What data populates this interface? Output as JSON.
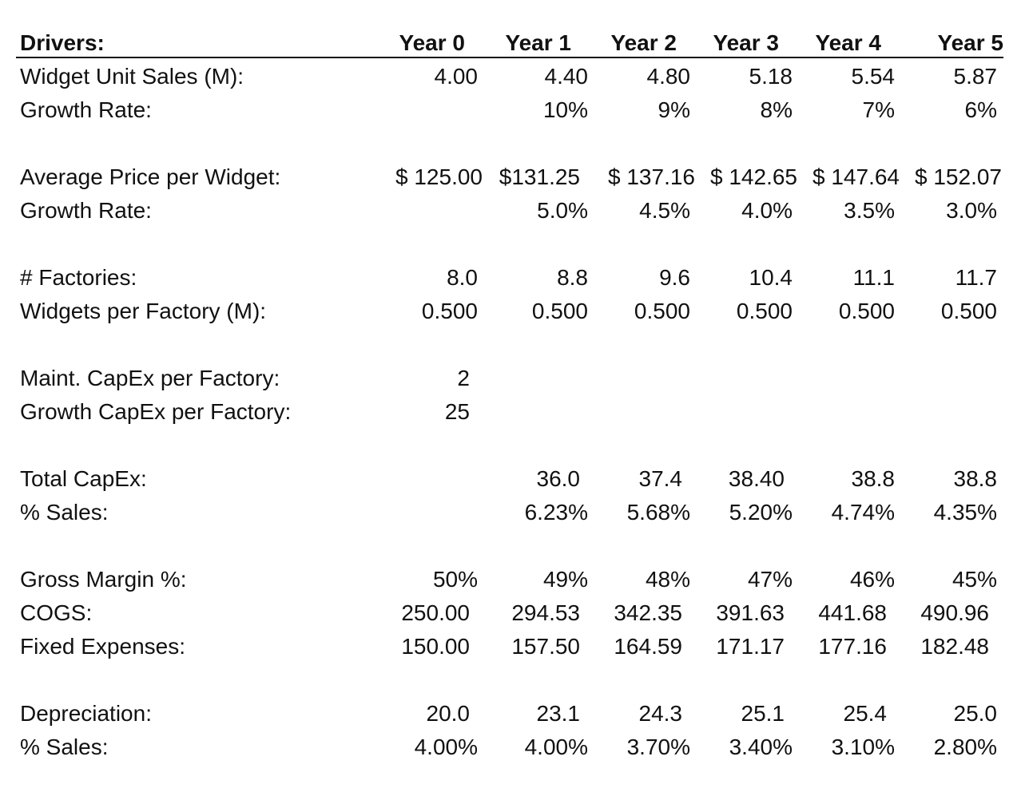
{
  "header": {
    "title": "Drivers:",
    "years": [
      "Year 0",
      "Year 1",
      "Year 2",
      "Year 3",
      "Year 4",
      "Year 5"
    ]
  },
  "rows": {
    "widget_unit_sales": {
      "label": "Widget Unit Sales (M):",
      "values": [
        "4.00",
        "4.40",
        "4.80",
        "5.18",
        "5.54",
        "5.87"
      ]
    },
    "unit_growth_rate": {
      "label": "Growth Rate:",
      "values": [
        "",
        "10%",
        "9%",
        "8%",
        "7%",
        "6%"
      ]
    },
    "average_price": {
      "label": "Average Price per Widget:",
      "values": [
        "$ 125.00",
        "$131.25",
        "$ 137.16",
        "$ 142.65",
        "$ 147.64",
        "$ 152.07"
      ]
    },
    "price_growth_rate": {
      "label": "Growth Rate:",
      "values": [
        "",
        "5.0%",
        "4.5%",
        "4.0%",
        "3.5%",
        "3.0%"
      ]
    },
    "factories": {
      "label": "# Factories:",
      "values": [
        "8.0",
        "8.8",
        "9.6",
        "10.4",
        "11.1",
        "11.7"
      ]
    },
    "widgets_per_factory": {
      "label": "Widgets per Factory (M):",
      "values": [
        "0.500",
        "0.500",
        "0.500",
        "0.500",
        "0.500",
        "0.500"
      ]
    },
    "maint_capex": {
      "label": "Maint. CapEx per Factory:",
      "values": [
        "2",
        "",
        "",
        "",
        "",
        ""
      ]
    },
    "growth_capex": {
      "label": "Growth CapEx per Factory:",
      "values": [
        "25",
        "",
        "",
        "",
        "",
        ""
      ]
    },
    "total_capex": {
      "label": "Total CapEx:",
      "values": [
        "",
        "36.0",
        "37.4",
        "38.40",
        "38.8",
        "38.8"
      ]
    },
    "capex_pct_sales": {
      "label": "% Sales:",
      "values": [
        "",
        "6.23%",
        "5.68%",
        "5.20%",
        "4.74%",
        "4.35%"
      ]
    },
    "gross_margin": {
      "label": "Gross Margin %:",
      "values": [
        "50%",
        "49%",
        "48%",
        "47%",
        "46%",
        "45%"
      ]
    },
    "cogs": {
      "label": "COGS:",
      "values": [
        "250.00",
        "294.53",
        "342.35",
        "391.63",
        "441.68",
        "490.96"
      ]
    },
    "fixed_expenses": {
      "label": "Fixed Expenses:",
      "values": [
        "150.00",
        "157.50",
        "164.59",
        "171.17",
        "177.16",
        "182.48"
      ]
    },
    "depreciation": {
      "label": "Depreciation:",
      "values": [
        "20.0",
        "23.1",
        "24.3",
        "25.1",
        "25.4",
        "25.0"
      ]
    },
    "depreciation_pct_sales": {
      "label": "% Sales:",
      "values": [
        "4.00%",
        "4.00%",
        "3.70%",
        "3.40%",
        "3.10%",
        "2.80%"
      ]
    }
  }
}
